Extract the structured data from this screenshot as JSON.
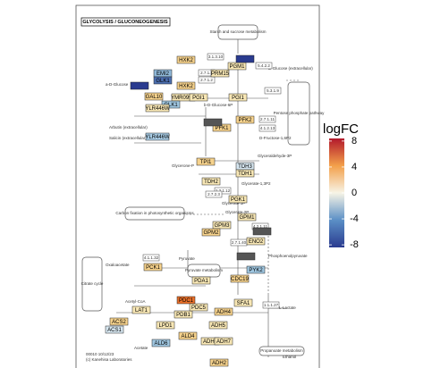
{
  "title": "GLYCOLYSIS / GLUCONEOGENESIS",
  "footer": [
    "00010 10/12/23",
    "(c) Kanehisa Laboratories"
  ],
  "pathways": [
    "Starch and sucrose metabolism",
    "Pentose phosphate pathway",
    "Carbon fixation in photosynthetic organisms",
    "Pyruvate metabolism",
    "Citrate cycle",
    "Propanoate metabolism"
  ],
  "compounds": [
    "a-D-Glucose",
    "b-D-Glucose-6P",
    "Arbutin (extracellular)",
    "Salicin (extracellular)",
    "Glycerone-P",
    "Glyceraldehyde-3P",
    "Glycerate-1,3P2",
    "Glycerate-3P",
    "Glycerate-2P",
    "Phosphoenolpyruvate",
    "Pyruvate",
    "Oxaloacetate",
    "Acetyl-CoA",
    "Acetate",
    "L-Lactate",
    "Ethanol",
    "D-Glucose (extracellular)",
    "D-Fructose-1,6P2"
  ],
  "genes": [
    {
      "label": "HXK2",
      "color": "#f6d28c"
    },
    {
      "label": "PGM1",
      "color": "#f8e7b5"
    },
    {
      "label": "EMI2",
      "color": "#8fb8d8"
    },
    {
      "label": "PRM15",
      "color": "#f8e7b5"
    },
    {
      "label": "GLK1",
      "color": "#4c6fb0"
    },
    {
      "label": "HXK2",
      "color": "#f6d28c"
    },
    {
      "label": "GAL10",
      "color": "#f6d28c"
    },
    {
      "label": "YMR099C",
      "color": "#f8e7b5"
    },
    {
      "label": "PGI1",
      "color": "#f8e7b5"
    },
    {
      "label": "PGI1",
      "color": "#f8e7b5"
    },
    {
      "label": "GLK1",
      "color": "#9fc6e0"
    },
    {
      "label": "YLR446W",
      "color": "#f8e7b5"
    },
    {
      "label": "YLR446W",
      "color": "#a9cde6"
    },
    {
      "label": "PFK2",
      "color": "#f6d28c"
    },
    {
      "label": "PFK1",
      "color": "#f6d28c"
    },
    {
      "label": "TPI1",
      "color": "#f6d28c"
    },
    {
      "label": "TDH3",
      "color": "#d6e6f0"
    },
    {
      "label": "TDH1",
      "color": "#f8e7b5"
    },
    {
      "label": "TDH2",
      "color": "#f8e7b5"
    },
    {
      "label": "PGK1",
      "color": "#f8e7b5"
    },
    {
      "label": "GPM1",
      "color": "#f8e7b5"
    },
    {
      "label": "GPM3",
      "color": "#f8e7b5"
    },
    {
      "label": "GPM2",
      "color": "#f6d28c"
    },
    {
      "label": "ENO2",
      "color": "#f8e7b5"
    },
    {
      "label": "PYK2",
      "color": "#9fc6e0"
    },
    {
      "label": "CDC19",
      "color": "#f6d28c"
    },
    {
      "label": "PCK1",
      "color": "#f6d28c"
    },
    {
      "label": "PDA1",
      "color": "#f8e7b5"
    },
    {
      "label": "PDB1",
      "color": "#f8e7b5"
    },
    {
      "label": "LAT1",
      "color": "#f8e7b5"
    },
    {
      "label": "ACS2",
      "color": "#f6d28c"
    },
    {
      "label": "ACS1",
      "color": "#d6e6f0"
    },
    {
      "label": "LPD1",
      "color": "#f8e7b5"
    },
    {
      "label": "PDC1",
      "color": "#e9702a"
    },
    {
      "label": "PDC5",
      "color": "#f8e7b5"
    },
    {
      "label": "ALD4",
      "color": "#f6d28c"
    },
    {
      "label": "ADH1",
      "color": "#f8e7b5"
    },
    {
      "label": "ADH4",
      "color": "#f6d28c"
    },
    {
      "label": "ADH5",
      "color": "#f8e7b5"
    },
    {
      "label": "ADH7",
      "color": "#f8e7b5"
    },
    {
      "label": "SFA1",
      "color": "#f8e7b5"
    },
    {
      "label": "ALD6",
      "color": "#9fc6e0"
    },
    {
      "label": "ADH2",
      "color": "#f6d28c"
    }
  ],
  "ec": [
    "3.1.3.10",
    "2.7.1.1",
    "2.7.1.2",
    "5.4.2.2",
    "5.3.1.9",
    "2.7.1.11",
    "4.1.2.13",
    "1.2.1.12",
    "2.7.2.3",
    "4.2.1.11",
    "2.7.1.40",
    "4.1.1.32",
    "1.1.1.27"
  ],
  "legend": {
    "title": "logFC",
    "ticks": [
      8,
      4,
      0,
      -4,
      -8
    ],
    "lim": [
      -8.4,
      8.4
    ],
    "colors": [
      "#2a3b8f",
      "#5b8fc6",
      "#f7f4e6",
      "#f3a04a",
      "#b2182b"
    ]
  }
}
